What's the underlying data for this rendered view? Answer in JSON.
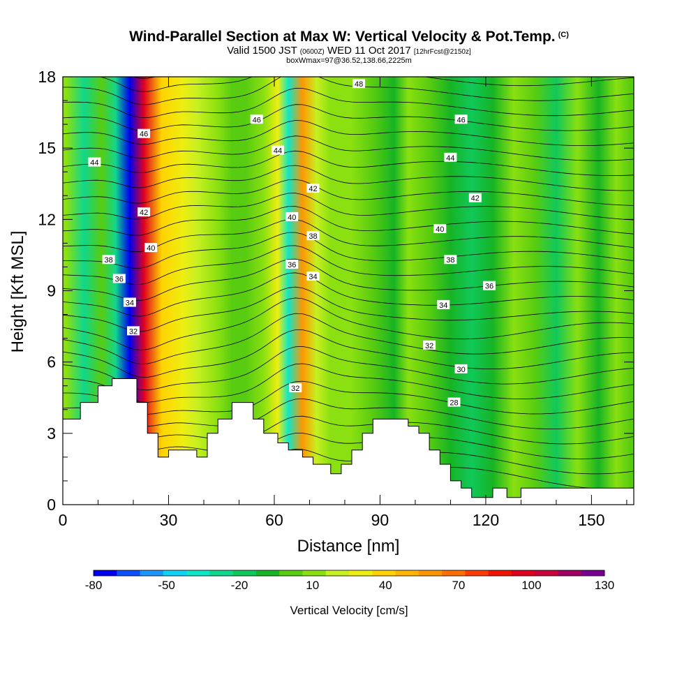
{
  "chart_data": {
    "type": "heatmap",
    "title": "Wind-Parallel Section at Max W: Vertical Velocity & Pot.Temp.",
    "title_mark": "(C)",
    "subtitle_main_a": "Valid 1500 JST",
    "subtitle_small_a": "(0600Z)",
    "subtitle_main_b": "WED 11 Oct 2017",
    "subtitle_small_b": "[12hrFcst@2150z]",
    "subtitle2": "boxWmax=97@36.52,138.66,2225m",
    "xlabel": "Distance [nm]",
    "ylabel": "Height [Kft MSL]",
    "xlim": [
      0,
      162
    ],
    "ylim": [
      0,
      18
    ],
    "xticks": [
      0,
      30,
      60,
      90,
      120,
      150
    ],
    "yticks": [
      0,
      3,
      6,
      9,
      12,
      15,
      18
    ],
    "colorbar": {
      "title": "Vertical Velocity [cm/s]",
      "labels": [
        -80,
        -50,
        -20,
        10,
        40,
        70,
        100,
        130
      ],
      "colors": [
        "#0000f0",
        "#0a50ff",
        "#1e96ff",
        "#10d2f5",
        "#10e6c8",
        "#10d78c",
        "#10c85a",
        "#16b424",
        "#58cc10",
        "#8ae010",
        "#c8f020",
        "#eeee10",
        "#ffd200",
        "#ffb400",
        "#ff9600",
        "#ff6e00",
        "#ff3c00",
        "#f01400",
        "#e00020",
        "#c8003c",
        "#a00064",
        "#780090"
      ]
    },
    "velocity_columns": [
      {
        "x": 1,
        "w": 7
      },
      {
        "x": 6,
        "w": -25
      },
      {
        "x": 11,
        "w": 5
      },
      {
        "x": 15,
        "w": -30
      },
      {
        "x": 19,
        "w": -75
      },
      {
        "x": 23,
        "w": 95
      },
      {
        "x": 28,
        "w": 40
      },
      {
        "x": 34,
        "w": 28
      },
      {
        "x": 38,
        "w": 22
      },
      {
        "x": 44,
        "w": 10
      },
      {
        "x": 48,
        "w": -3
      },
      {
        "x": 52,
        "w": 5
      },
      {
        "x": 57,
        "w": 15
      },
      {
        "x": 61,
        "w": 25
      },
      {
        "x": 64,
        "w": -40
      },
      {
        "x": 68,
        "w": 60
      },
      {
        "x": 72,
        "w": 18
      },
      {
        "x": 76,
        "w": 10
      },
      {
        "x": 82,
        "w": 14
      },
      {
        "x": 88,
        "w": 3
      },
      {
        "x": 94,
        "w": -8
      },
      {
        "x": 98,
        "w": 12
      },
      {
        "x": 104,
        "w": 3
      },
      {
        "x": 110,
        "w": -5
      },
      {
        "x": 116,
        "w": -20
      },
      {
        "x": 122,
        "w": -10
      },
      {
        "x": 128,
        "w": 12
      },
      {
        "x": 134,
        "w": 3
      },
      {
        "x": 140,
        "w": -15
      },
      {
        "x": 146,
        "w": 6
      },
      {
        "x": 152,
        "w": -8
      },
      {
        "x": 157,
        "w": 10
      },
      {
        "x": 161,
        "w": 2
      }
    ],
    "pot_temp_labels": [
      {
        "value": "48",
        "x": 84,
        "y": 17.7
      },
      {
        "value": "46",
        "x": 23,
        "y": 15.6
      },
      {
        "value": "46",
        "x": 55,
        "y": 16.2
      },
      {
        "value": "46",
        "x": 113,
        "y": 16.2
      },
      {
        "value": "44",
        "x": 9,
        "y": 14.4
      },
      {
        "value": "44",
        "x": 61,
        "y": 14.9
      },
      {
        "value": "44",
        "x": 110,
        "y": 14.6
      },
      {
        "value": "42",
        "x": 23,
        "y": 12.3
      },
      {
        "value": "42",
        "x": 71,
        "y": 13.3
      },
      {
        "value": "42",
        "x": 117,
        "y": 12.9
      },
      {
        "value": "40",
        "x": 25,
        "y": 10.8
      },
      {
        "value": "40",
        "x": 65,
        "y": 12.1
      },
      {
        "value": "40",
        "x": 107,
        "y": 11.6
      },
      {
        "value": "38",
        "x": 13,
        "y": 10.3
      },
      {
        "value": "38",
        "x": 71,
        "y": 11.3
      },
      {
        "value": "38",
        "x": 110,
        "y": 10.3
      },
      {
        "value": "36",
        "x": 16,
        "y": 9.5
      },
      {
        "value": "36",
        "x": 65,
        "y": 10.1
      },
      {
        "value": "36",
        "x": 121,
        "y": 9.2
      },
      {
        "value": "34",
        "x": 19,
        "y": 8.5
      },
      {
        "value": "34",
        "x": 71,
        "y": 9.6
      },
      {
        "value": "34",
        "x": 108,
        "y": 8.4
      },
      {
        "value": "32",
        "x": 20,
        "y": 7.3
      },
      {
        "value": "32",
        "x": 66,
        "y": 4.9
      },
      {
        "value": "32",
        "x": 104,
        "y": 6.7
      },
      {
        "value": "30",
        "x": 113,
        "y": 5.7
      },
      {
        "value": "28",
        "x": 111,
        "y": 4.3
      }
    ]
  }
}
